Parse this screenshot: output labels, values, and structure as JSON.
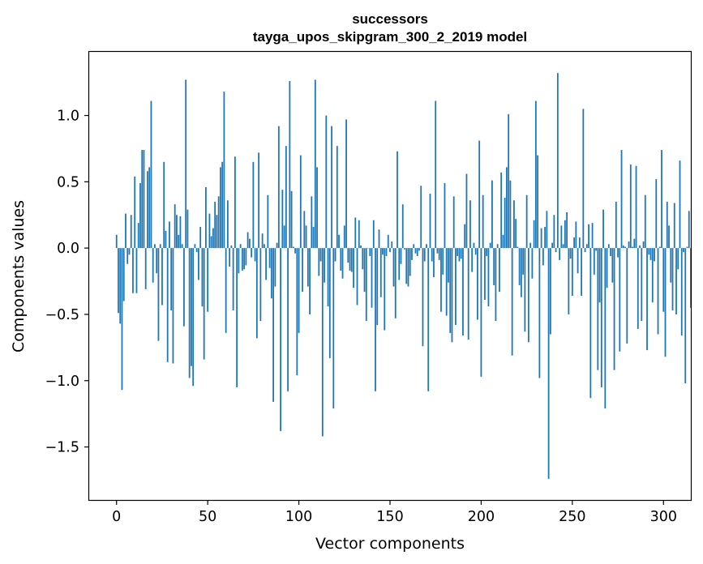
{
  "chart_data": {
    "type": "bar",
    "title": "successors",
    "subtitle": "tayga_upos_skipgram_300_2_2019 model",
    "xlabel": "Vector components",
    "ylabel": "Components values",
    "xlim": [
      -15,
      315
    ],
    "ylim": [
      -1.9,
      1.48
    ],
    "xticks": [
      0,
      50,
      100,
      150,
      200,
      250,
      300
    ],
    "yticks": [
      -1.5,
      -1.0,
      -0.5,
      0.0,
      0.5,
      1.0
    ],
    "ytick_labels": [
      "−1.5",
      "−1.0",
      "−0.5",
      "0.0",
      "0.5",
      "1.0"
    ],
    "color": "#1f77b4",
    "values": [
      0.1,
      -0.49,
      -0.57,
      -1.07,
      -0.4,
      0.26,
      -0.12,
      -0.05,
      0.25,
      -0.34,
      0.54,
      -0.34,
      0.19,
      0.49,
      0.74,
      0.74,
      -0.31,
      0.58,
      0.61,
      1.11,
      -0.26,
      0.03,
      -0.19,
      -0.7,
      0.03,
      -0.43,
      0.65,
      0.13,
      -0.86,
      0.2,
      -0.47,
      -0.87,
      0.33,
      0.25,
      0.1,
      0.24,
      0.03,
      -0.59,
      1.27,
      0.29,
      -0.98,
      -0.89,
      -1.04,
      0.03,
      -0.03,
      -0.24,
      0.16,
      -0.44,
      -0.84,
      0.46,
      -0.48,
      0.26,
      0.09,
      0.15,
      0.35,
      0.25,
      0.39,
      0.61,
      0.65,
      1.18,
      -0.64,
      0.36,
      -0.14,
      0.02,
      -0.47,
      0.69,
      -1.05,
      -0.19,
      0.03,
      -0.17,
      -0.16,
      -0.13,
      0.12,
      0.07,
      -0.07,
      0.65,
      -0.1,
      -0.68,
      0.72,
      -0.55,
      0.11,
      0.03,
      -0.24,
      0.4,
      -0.15,
      -0.38,
      -1.16,
      -0.29,
      0.04,
      0.92,
      -1.38,
      0.44,
      0.17,
      0.77,
      -1.08,
      1.26,
      0.43,
      0.01,
      -0.04,
      -0.96,
      -0.64,
      0.7,
      -0.33,
      0.28,
      0.17,
      -0.29,
      -0.5,
      0.39,
      0.16,
      1.27,
      0.61,
      -0.21,
      -0.1,
      -1.42,
      -0.26,
      1.0,
      -0.44,
      -0.83,
      0.92,
      -1.21,
      -0.1,
      0.77,
      0.1,
      -0.17,
      -0.23,
      0.17,
      0.97,
      -0.11,
      -0.17,
      -0.18,
      -0.3,
      0.23,
      -0.43,
      0.21,
      0.02,
      -0.16,
      -0.33,
      -0.55,
      0.0,
      -0.06,
      -0.45,
      0.21,
      -1.08,
      -0.58,
      0.14,
      -0.37,
      -0.05,
      -0.62,
      -0.06,
      0.1,
      -0.03,
      0.05,
      -0.29,
      -0.53,
      0.73,
      -0.24,
      -0.12,
      0.33,
      -0.01,
      -0.27,
      -0.29,
      -0.21,
      -0.09,
      0.03,
      -0.04,
      -0.06,
      -0.02,
      0.47,
      -0.74,
      -0.1,
      0.03,
      -1.08,
      0.41,
      -0.1,
      -0.22,
      1.11,
      -0.04,
      -0.09,
      -0.48,
      -0.2,
      0.49,
      -0.51,
      -0.26,
      -0.64,
      -0.71,
      0.39,
      -0.58,
      -0.06,
      -0.1,
      -0.08,
      -0.66,
      0.18,
      0.56,
      -0.69,
      0.36,
      -0.18,
      0.04,
      -0.05,
      -0.54,
      0.81,
      -0.97,
      0.4,
      -0.39,
      -0.06,
      -0.44,
      0.04,
      0.51,
      -0.28,
      -0.55,
      0.03,
      -0.33,
      0.57,
      0.1,
      0.38,
      0.61,
      1.01,
      0.51,
      -0.81,
      0.36,
      0.22,
      0.01,
      -0.28,
      -0.37,
      -0.2,
      -0.63,
      0.4,
      -0.71,
      0.04,
      -0.23,
      0.21,
      1.11,
      0.7,
      -0.98,
      0.15,
      -0.13,
      0.16,
      0.28,
      -1.74,
      -0.65,
      0.04,
      0.25,
      -0.03,
      1.32,
      -0.09,
      0.17,
      0.03,
      0.21,
      0.27,
      -0.5,
      -0.08,
      -0.36,
      0.08,
      0.2,
      -0.19,
      0.08,
      -0.36,
      1.05,
      -0.03,
      0.03,
      0.18,
      -1.13,
      0.19,
      -0.2,
      -0.02,
      -0.92,
      -0.41,
      -1.05,
      0.29,
      -1.21,
      -0.3,
      0.03,
      -0.06,
      -0.26,
      -0.92,
      0.35,
      -0.07,
      -0.78,
      0.74,
      0.02,
      0.01,
      -0.72,
      0.05,
      0.63,
      0.01,
      0.07,
      0.62,
      -0.61,
      0.02,
      -0.55,
      0.05,
      0.4,
      -0.77,
      -0.05,
      -0.09,
      -0.41,
      -0.1,
      0.52,
      -0.65,
      0.01,
      0.74,
      -0.48,
      -0.82,
      0.35,
      0.17,
      -0.26,
      -0.47,
      0.34,
      -0.5,
      -0.16,
      0.66,
      -0.66,
      -0.03,
      -1.02,
      0.01,
      0.28,
      -0.45
    ]
  }
}
